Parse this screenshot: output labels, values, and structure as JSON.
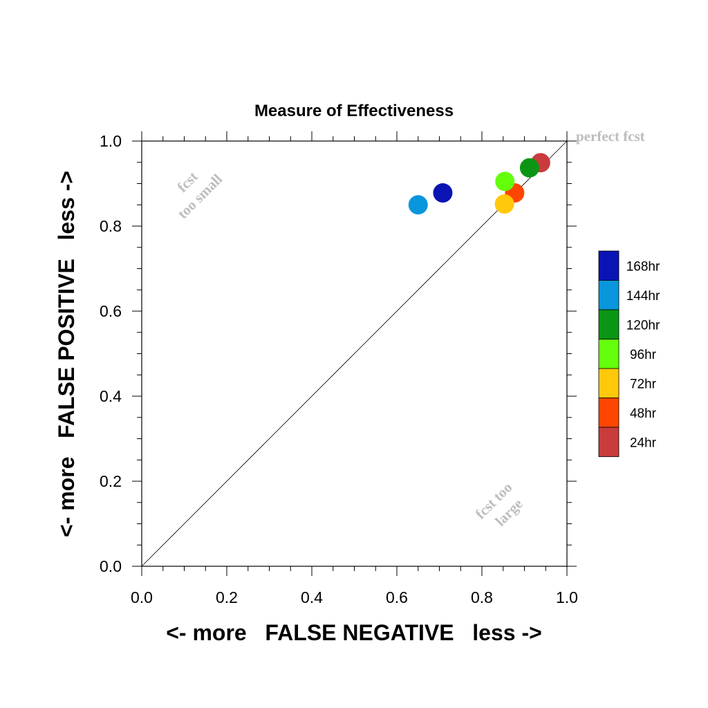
{
  "chart_data": {
    "type": "scatter",
    "title": "Measure of Effectiveness",
    "xlabel": "<- more   FALSE NEGATIVE   less ->",
    "ylabel": "<- more   FALSE POSITIVE   less ->",
    "xlim": [
      0.0,
      1.0
    ],
    "ylim": [
      0.0,
      1.0
    ],
    "x_ticks": [
      "0.0",
      "0.2",
      "0.4",
      "0.6",
      "0.8",
      "1.0"
    ],
    "y_ticks": [
      "0.0",
      "0.2",
      "0.4",
      "0.6",
      "0.8",
      "1.0"
    ],
    "grid": false,
    "legend_position": "right",
    "reference_line": "diagonal y = x",
    "annotations": {
      "perfect": "perfect fcst",
      "too_small_1": "fcst",
      "too_small_2": "too small",
      "too_large_1": "fcst too",
      "too_large_2": "large"
    },
    "series": [
      {
        "name": "168hr",
        "color": "#0a14b4",
        "x": 0.708,
        "y": 0.878
      },
      {
        "name": "144hr",
        "color": "#0a96dc",
        "x": 0.65,
        "y": 0.85
      },
      {
        "name": "120hr",
        "color": "#0a9614",
        "x": 0.912,
        "y": 0.937
      },
      {
        "name": "96hr",
        "color": "#64ff0a",
        "x": 0.854,
        "y": 0.905
      },
      {
        "name": "72hr",
        "color": "#ffc80a",
        "x": 0.853,
        "y": 0.852
      },
      {
        "name": "48hr",
        "color": "#ff4600",
        "x": 0.877,
        "y": 0.878
      },
      {
        "name": "24hr",
        "color": "#c83c3c",
        "x": 0.938,
        "y": 0.949
      }
    ]
  }
}
